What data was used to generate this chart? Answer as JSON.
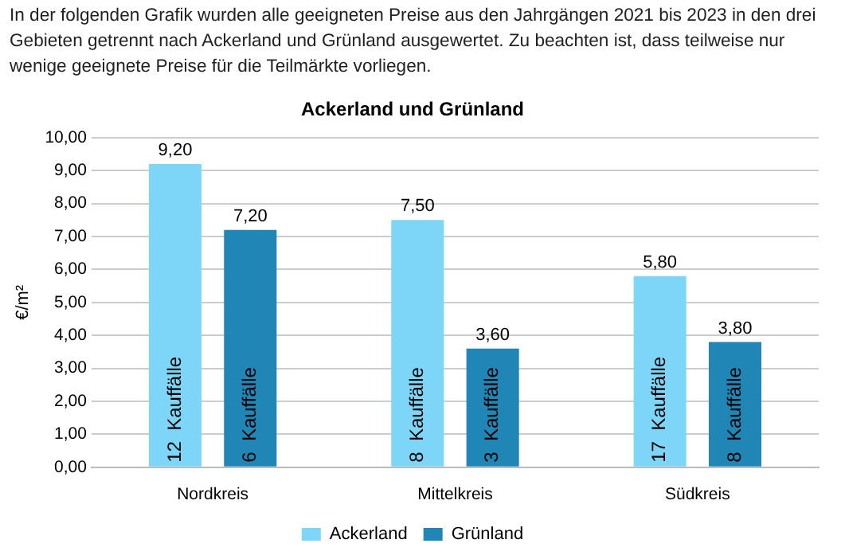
{
  "chart_data": {
    "type": "bar",
    "subtitle": "In der folgenden Grafik wurden alle geeigneten Preise aus den Jahrgängen 2021 bis 2023 in den drei Gebieten getrennt nach Ackerland und Grünland ausgewertet. Zu beachten ist, dass teilweise nur wenige geeignete Preise für die Teilmärkte vorliegen.",
    "title": "Ackerland und Grünland",
    "ylabel": "€/m²",
    "categories": [
      "Nordkreis",
      "Mittelkreis",
      "Südkreis"
    ],
    "series": [
      {
        "name": "Ackerland",
        "color": "#7dd6f8",
        "values": [
          9.2,
          7.5,
          5.8
        ],
        "value_labels": [
          "9,20",
          "7,50",
          "5,80"
        ]
      },
      {
        "name": "Grünland",
        "color": "#1f86b6",
        "values": [
          7.2,
          3.6,
          3.8
        ],
        "value_labels": [
          "7,20",
          "3,60",
          "3,80"
        ]
      }
    ],
    "annotations": [
      "12  Kauffälle",
      "6  Kauffälle",
      "8  Kauffälle",
      "3  Kauffälle",
      "17  Kauffälle",
      "8  Kauffälle"
    ],
    "ylim": [
      0,
      10
    ],
    "yticks": [
      {
        "value": 0,
        "label": "0,00"
      },
      {
        "value": 1,
        "label": "1,00"
      },
      {
        "value": 2,
        "label": "2,00"
      },
      {
        "value": 3,
        "label": "3,00"
      },
      {
        "value": 4,
        "label": "4,00"
      },
      {
        "value": 5,
        "label": "5,00"
      },
      {
        "value": 6,
        "label": "6,00"
      },
      {
        "value": 7,
        "label": "7,00"
      },
      {
        "value": 8,
        "label": "8,00"
      },
      {
        "value": 9,
        "label": "9,00"
      },
      {
        "value": 10,
        "label": "10,00"
      }
    ],
    "grid": "y",
    "legend": "bottom"
  }
}
